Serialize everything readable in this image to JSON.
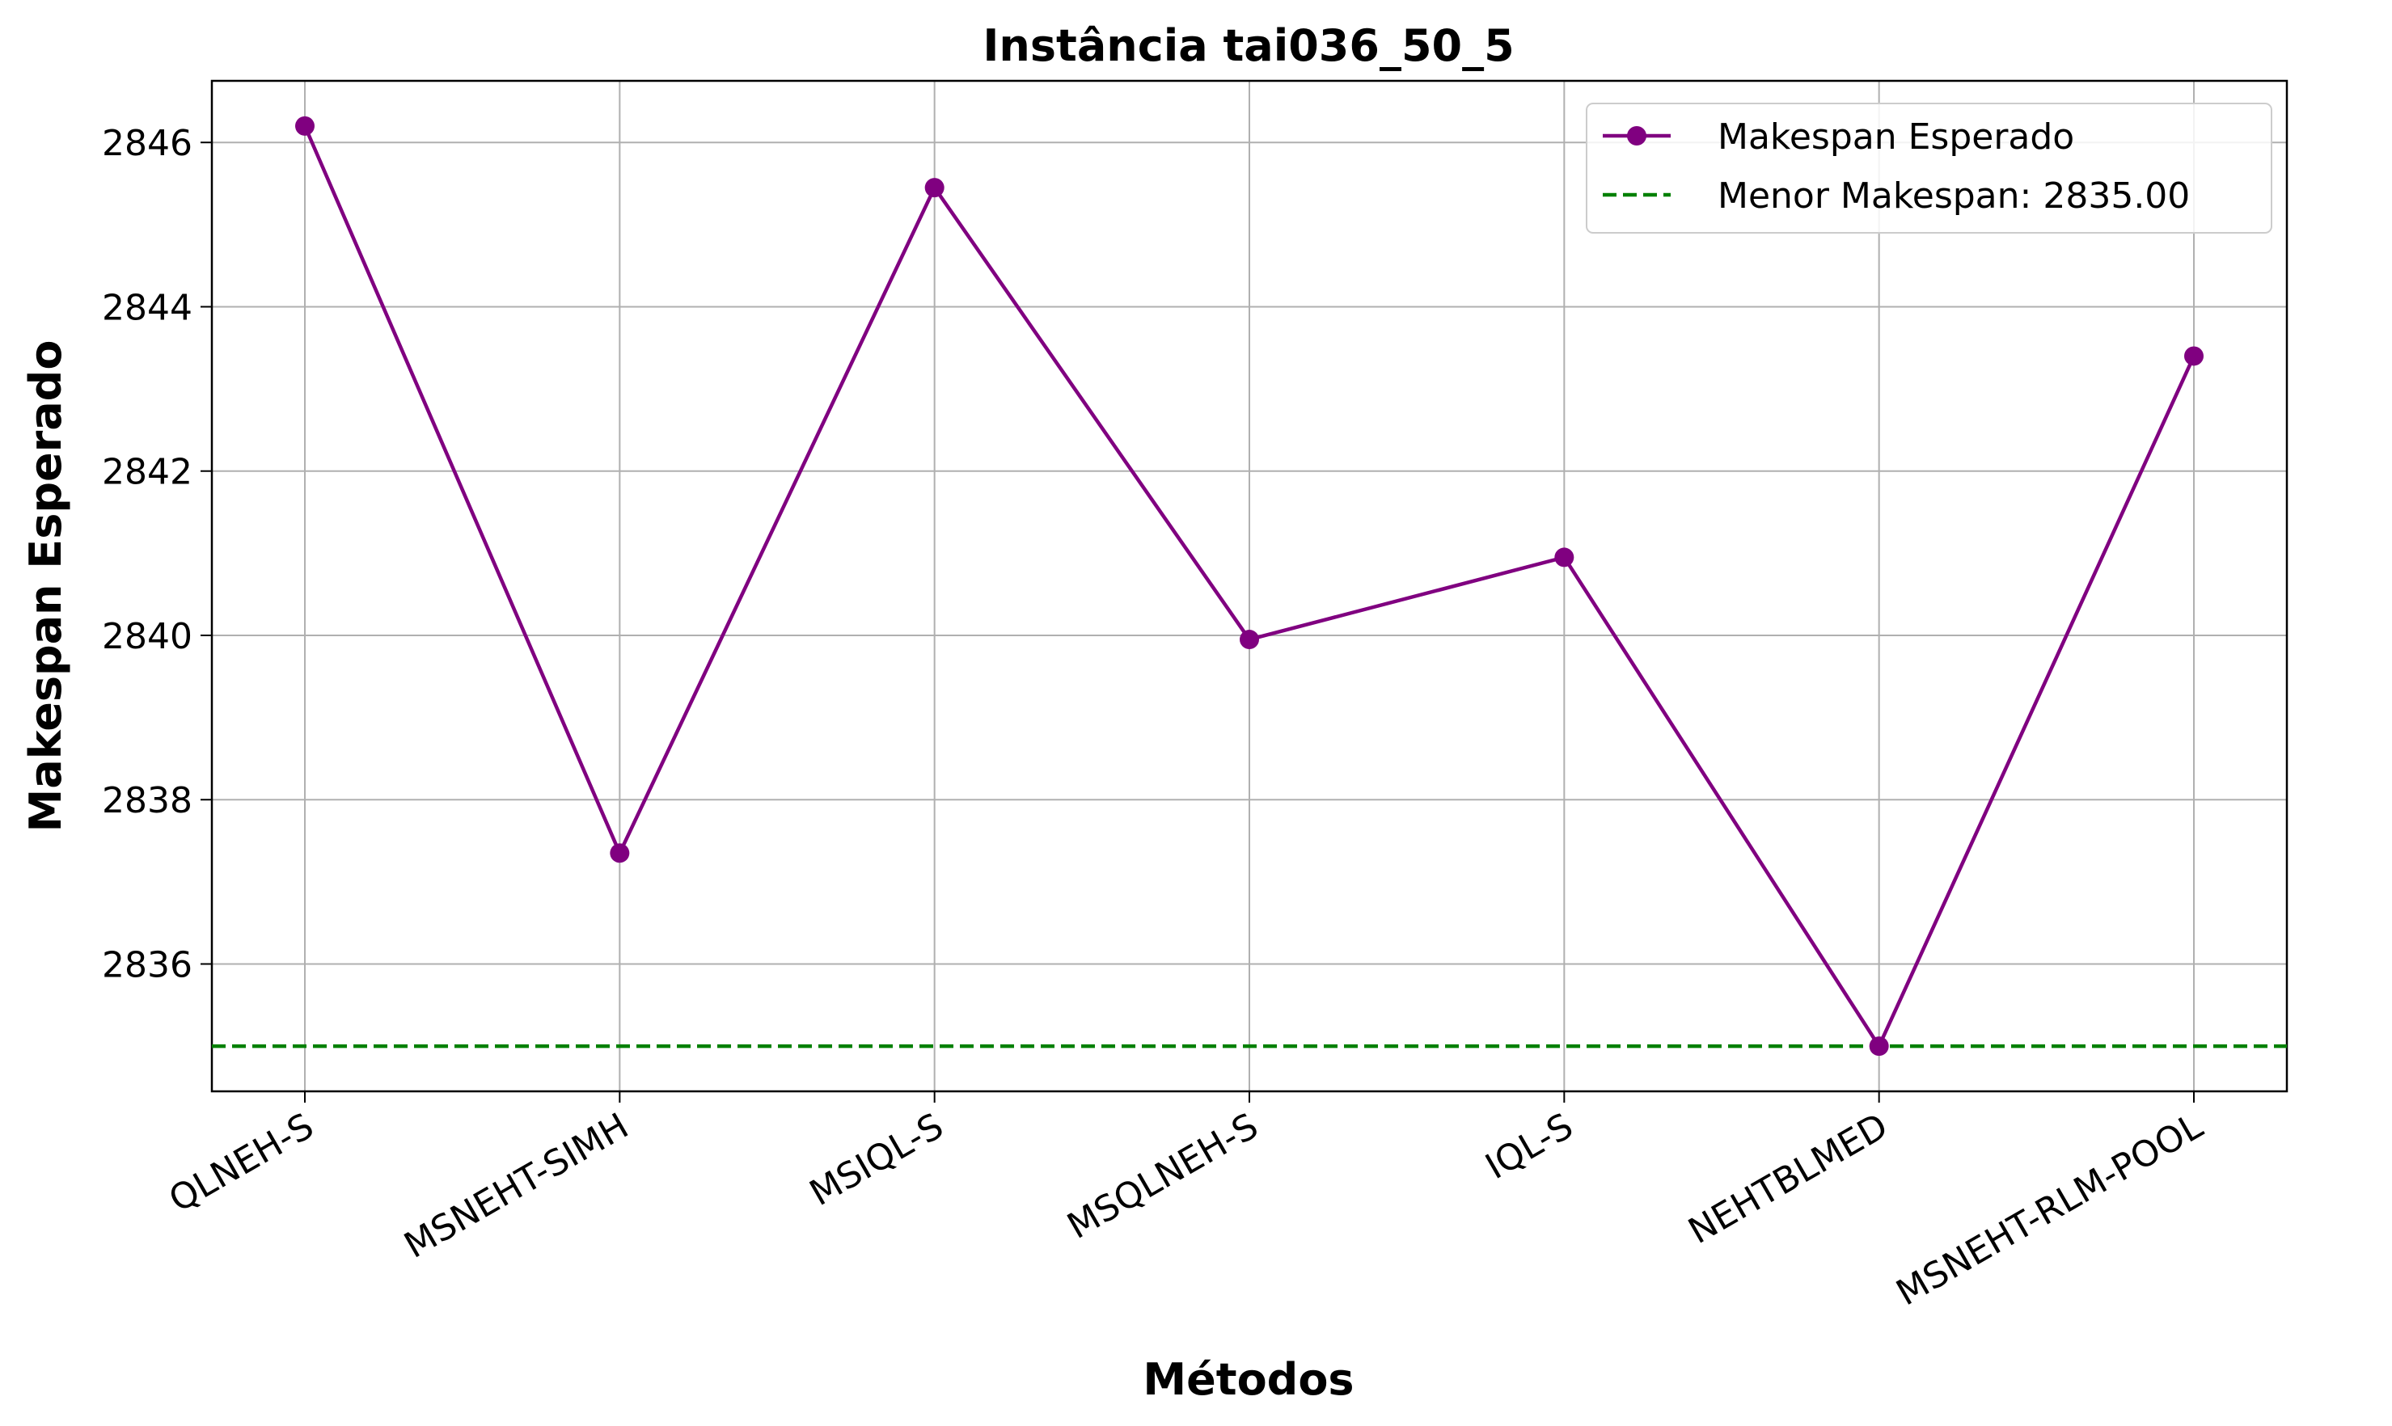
{
  "chart_data": {
    "type": "line",
    "title": "Instância tai036_50_5",
    "xlabel": "Métodos",
    "ylabel": "Makespan Esperado",
    "categories": [
      "QLNEH-S",
      "MSNEHT-SIMH",
      "MSIQL-S",
      "MSQLNEH-S",
      "IQL-S",
      "NEHTBLMED",
      "MSNEHT-RLM-POOL"
    ],
    "series": [
      {
        "name": "Makespan Esperado",
        "values": [
          2846.2,
          2837.35,
          2845.45,
          2839.95,
          2840.95,
          2835.0,
          2843.4
        ],
        "color": "#800080",
        "marker": "circle"
      }
    ],
    "reference_line": {
      "label": "Menor Makespan: 2835.00",
      "value": 2835.0,
      "color": "#008000",
      "style": "dashed"
    },
    "yticks": [
      2836,
      2838,
      2840,
      2842,
      2844,
      2846
    ],
    "ylim": [
      2834.45,
      2846.75
    ],
    "xtick_rotation": 30,
    "grid": true,
    "legend_position": "top-right"
  }
}
